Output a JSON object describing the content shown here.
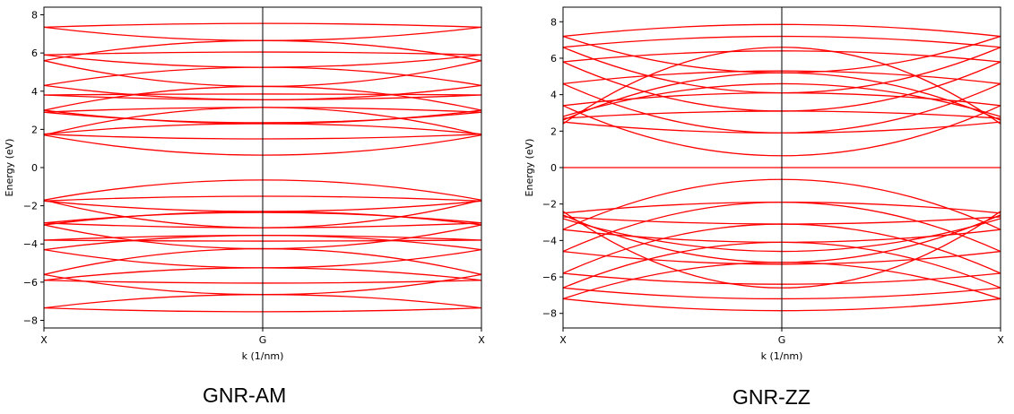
{
  "chart_data": [
    {
      "type": "line",
      "title": "",
      "caption": "GNR-AM",
      "xlabel": "k (1/nm)",
      "ylabel": "Energy (eV)",
      "x_ticks": [
        "X",
        "G",
        "X"
      ],
      "xlim": [
        -1,
        1
      ],
      "ylim": [
        -8.4,
        8.4
      ],
      "y_ticks": [
        -8,
        -6,
        -4,
        -2,
        0,
        2,
        4,
        6,
        8
      ],
      "y_tick_labels": [
        "−8",
        "−6",
        "−4",
        "−2",
        "0",
        "2",
        "4",
        "6",
        "8"
      ],
      "line_color": "#ff0000",
      "bands": [
        {
          "edge": 7.35,
          "center": 7.55
        },
        {
          "edge": 7.35,
          "center": 6.65
        },
        {
          "edge": 5.9,
          "center": 6.05
        },
        {
          "edge": 5.9,
          "center": 5.25
        },
        {
          "edge": 5.6,
          "center": 4.25
        },
        {
          "edge": 5.6,
          "center": 6.65
        },
        {
          "edge": 4.3,
          "center": 3.55
        },
        {
          "edge": 4.3,
          "center": 5.25
        },
        {
          "edge": 3.8,
          "center": 3.85
        },
        {
          "edge": 3.8,
          "center": 3.55
        },
        {
          "edge": 3.0,
          "center": 4.25
        },
        {
          "edge": 3.0,
          "center": 2.3
        },
        {
          "edge": 2.9,
          "center": 2.35
        },
        {
          "edge": 2.9,
          "center": 3.15
        },
        {
          "edge": 1.75,
          "center": 1.5
        },
        {
          "edge": 1.75,
          "center": 2.3
        },
        {
          "edge": 1.7,
          "center": 0.65
        },
        {
          "edge": 1.7,
          "center": 3.15
        },
        {
          "edge": -1.7,
          "center": -0.65
        },
        {
          "edge": -1.7,
          "center": -3.15
        },
        {
          "edge": -1.75,
          "center": -1.5
        },
        {
          "edge": -1.75,
          "center": -2.3
        },
        {
          "edge": -2.9,
          "center": -2.35
        },
        {
          "edge": -2.9,
          "center": -3.15
        },
        {
          "edge": -3.0,
          "center": -4.25
        },
        {
          "edge": -3.0,
          "center": -2.3
        },
        {
          "edge": -3.8,
          "center": -3.85
        },
        {
          "edge": -3.8,
          "center": -3.55
        },
        {
          "edge": -4.3,
          "center": -3.55
        },
        {
          "edge": -4.3,
          "center": -5.25
        },
        {
          "edge": -5.6,
          "center": -4.25
        },
        {
          "edge": -5.6,
          "center": -6.65
        },
        {
          "edge": -5.9,
          "center": -6.05
        },
        {
          "edge": -5.9,
          "center": -5.25
        },
        {
          "edge": -7.35,
          "center": -7.55
        },
        {
          "edge": -7.35,
          "center": -6.65
        }
      ]
    },
    {
      "type": "line",
      "title": "",
      "caption": "GNR-ZZ",
      "xlabel": "k (1/nm)",
      "ylabel": "Energy (eV)",
      "x_ticks": [
        "X",
        "G",
        "X"
      ],
      "xlim": [
        -1,
        1
      ],
      "ylim": [
        -8.8,
        8.8
      ],
      "y_ticks": [
        -8,
        -6,
        -4,
        -2,
        0,
        2,
        4,
        6,
        8
      ],
      "y_tick_labels": [
        "−8",
        "−6",
        "−4",
        "−2",
        "0",
        "2",
        "4",
        "6",
        "8"
      ],
      "line_color": "#ff0000",
      "bands": [
        {
          "edge": 7.2,
          "center": 7.85
        },
        {
          "edge": 7.2,
          "center": 5.2
        },
        {
          "edge": 6.6,
          "center": 7.2
        },
        {
          "edge": 6.6,
          "center": 4.1
        },
        {
          "edge": 5.8,
          "center": 6.4
        },
        {
          "edge": 5.8,
          "center": 3.1
        },
        {
          "edge": 4.6,
          "center": 5.3
        },
        {
          "edge": 4.6,
          "center": 1.9
        },
        {
          "edge": 3.4,
          "center": 4.1
        },
        {
          "edge": 3.4,
          "center": 0.65
        },
        {
          "edge": 2.8,
          "center": 4.6
        },
        {
          "edge": 2.7,
          "center": 3.1
        },
        {
          "edge": 2.6,
          "center": 5.2
        },
        {
          "edge": 2.5,
          "center": 1.9
        },
        {
          "edge": 2.4,
          "center": 6.6
        },
        {
          "edge": 0.0,
          "center": 0.0
        },
        {
          "edge": -7.2,
          "center": -7.85
        },
        {
          "edge": -7.2,
          "center": -5.2
        },
        {
          "edge": -6.6,
          "center": -7.2
        },
        {
          "edge": -6.6,
          "center": -4.1
        },
        {
          "edge": -5.8,
          "center": -6.4
        },
        {
          "edge": -5.8,
          "center": -3.1
        },
        {
          "edge": -4.6,
          "center": -5.3
        },
        {
          "edge": -4.6,
          "center": -1.9
        },
        {
          "edge": -3.4,
          "center": -4.1
        },
        {
          "edge": -3.4,
          "center": -0.65
        },
        {
          "edge": -2.8,
          "center": -4.6
        },
        {
          "edge": -2.7,
          "center": -3.1
        },
        {
          "edge": -2.6,
          "center": -5.2
        },
        {
          "edge": -2.5,
          "center": -1.9
        },
        {
          "edge": -2.4,
          "center": -6.6
        }
      ]
    }
  ]
}
